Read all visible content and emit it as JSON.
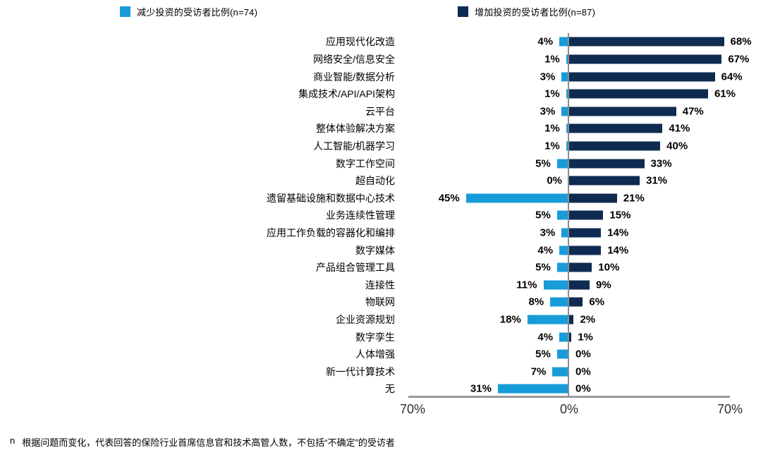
{
  "legend": [
    {
      "label": "减少投资的受访者比例(n=74)",
      "color": "#189cd9"
    },
    {
      "label": "增加投资的受访者比例(n=87)",
      "color": "#0f2b52"
    }
  ],
  "chart_data": {
    "type": "bar",
    "orientation": "horizontal-diverging",
    "categories": [
      "应用现代化改造",
      "网络安全/信息安全",
      "商业智能/数据分析",
      "集成技术/API/API架构",
      "云平台",
      "整体体验解决方案",
      "人工智能/机器学习",
      "数字工作空间",
      "超自动化",
      "遗留基础设施和数据中心技术",
      "业务连续性管理",
      "应用工作负载的容器化和编排",
      "数字媒体",
      "产品组合管理工具",
      "连接性",
      "物联网",
      "企业资源规划",
      "数字孪生",
      "人体增强",
      "新一代计算技术",
      "无"
    ],
    "series": [
      {
        "name": "减少投资的受访者比例(n=74)",
        "side": "left",
        "color": "#189cd9",
        "values": [
          4,
          1,
          3,
          1,
          3,
          1,
          1,
          5,
          0,
          45,
          5,
          3,
          4,
          5,
          11,
          8,
          18,
          4,
          5,
          7,
          31
        ]
      },
      {
        "name": "增加投资的受访者比例(n=87)",
        "side": "right",
        "color": "#0f2b52",
        "values": [
          68,
          67,
          64,
          61,
          47,
          41,
          40,
          33,
          31,
          21,
          15,
          14,
          14,
          10,
          9,
          6,
          2,
          1,
          0,
          0,
          0
        ]
      }
    ],
    "xlim": [
      -70,
      70
    ],
    "axis_ticks": [
      "70%",
      "0%",
      "70%"
    ],
    "value_suffix": "%",
    "grid": false,
    "legend_position": "top"
  },
  "footnote": {
    "marker": "n",
    "text": "根据问题而变化，代表回答的保险行业首席信息官和技术高管人数，不包括“不确定”的受访者"
  }
}
